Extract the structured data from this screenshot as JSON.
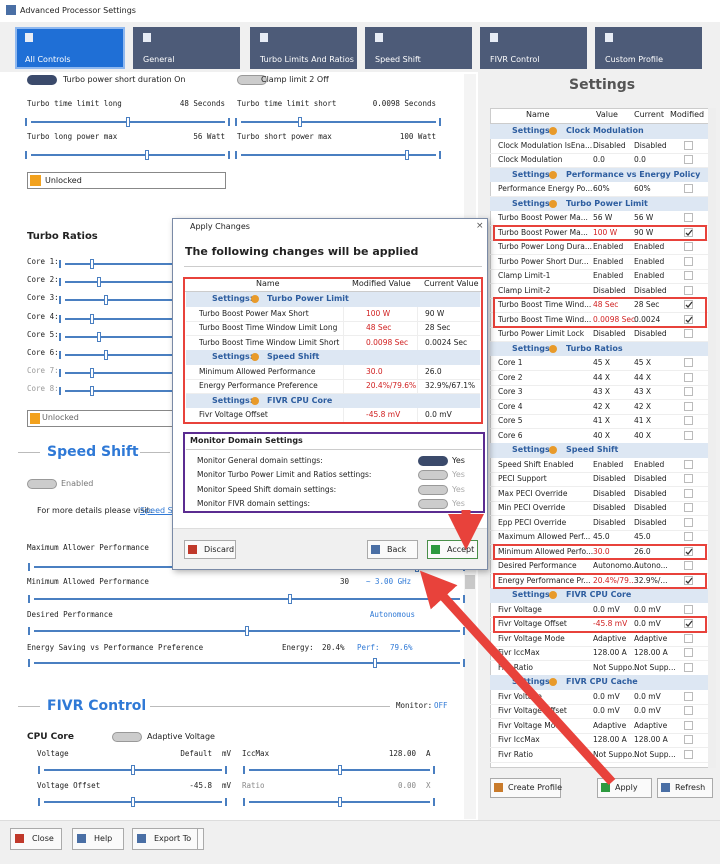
{
  "window": {
    "title": "Advanced Processor Settings"
  },
  "tabs": [
    "All Controls",
    "General",
    "Turbo Limits And Ratios",
    "Speed Shift",
    "FIVR Control",
    "Custom Profile"
  ],
  "left": {
    "toggle_1": "Turbo power short duration On",
    "toggle_2": "Clamp limit 2 Off",
    "turbo_rows": [
      {
        "label": "Turbo time limit long",
        "value": "48 Seconds"
      },
      {
        "label": "Turbo time limit short",
        "value": "0.0098 Seconds"
      },
      {
        "label": "Turbo long power max",
        "value": "56 Watt"
      },
      {
        "label": "Turbo short power max",
        "value": "100 Watt"
      }
    ],
    "lock_1": "Unlocked",
    "turbo_ratios": "Turbo Ratios",
    "cores": [
      "Core 1:",
      "Core 2:",
      "Core 3:",
      "Core 4:",
      "Core 5:",
      "Core 6:",
      "Core 7:",
      "Core 8:"
    ],
    "lock_2": "Unlocked",
    "speed_shift": {
      "title": "Speed Shift",
      "toggle": "Enabled",
      "details": "For more details please visit:",
      "link": "Speed S",
      "max_perf": "Maximum Allower Performance",
      "min_perf": "Minimum Allowed Performance",
      "min_value": "30",
      "min_freq": "~ 3.00 GHz",
      "desired": "Desired Performance",
      "desired_value": "Autonomous",
      "epp": "Energy Saving vs Performance Preference",
      "energy_label": "Energy:",
      "energy_value": "20.4%",
      "perf_label": "Perf:",
      "perf_value": "79.6%"
    },
    "fivr": {
      "title": "FIVR Control",
      "monitor_label": "Monitor:",
      "monitor_value": "OFF",
      "cpu_core": "CPU Core",
      "adaptive": "Adaptive Voltage",
      "voltage": "Voltage",
      "voltage_value": "Default",
      "voltage_unit": "mV",
      "iccmax": "IccMax",
      "iccmax_value": "128.00",
      "iccmax_unit": "A",
      "offset": "Voltage Offset",
      "offset_value": "-45.8",
      "offset_unit": "mV",
      "ratio": "Ratio",
      "ratio_value": "0.00",
      "ratio_unit": "X"
    }
  },
  "settings": {
    "title": "Settings",
    "columns": [
      "Name",
      "Value",
      "Current",
      "Modified"
    ],
    "rows": [
      {
        "prefix": "Settings:",
        "group": "Clock Modulation"
      },
      {
        "name": "Clock Modulation IsEna...",
        "value": "Disabled",
        "current": "Disabled",
        "modified": false
      },
      {
        "name": "Clock Modulation",
        "value": "0.0",
        "current": "0.0",
        "modified": false
      },
      {
        "prefix": "Settings:",
        "group": "Performance vs Energy Policy"
      },
      {
        "name": "Performance Energy Po...",
        "value": "60%",
        "current": "60%",
        "modified": false
      },
      {
        "prefix": "Settings:",
        "group": "Turbo Power Limit"
      },
      {
        "name": "Turbo Boost Power Ma...",
        "value": "56 W",
        "current": "56 W",
        "modified": false
      },
      {
        "name": "Turbo Boost Power Ma...",
        "value": "100 W",
        "current": "90 W",
        "modified": true
      },
      {
        "name": "Turbo Power Long Dura...",
        "value": "Enabled",
        "current": "Enabled",
        "modified": false
      },
      {
        "name": "Turbo Power Short Dur...",
        "value": "Enabled",
        "current": "Enabled",
        "modified": false
      },
      {
        "name": "Clamp Limit-1",
        "value": "Enabled",
        "current": "Enabled",
        "modified": false
      },
      {
        "name": "Clamp Limit-2",
        "value": "Disabled",
        "current": "Disabled",
        "modified": false
      },
      {
        "name": "Turbo Boost Time Wind...",
        "value": "48 Sec",
        "current": "28 Sec",
        "modified": true
      },
      {
        "name": "Turbo Boost Time Wind...",
        "value": "0.0098 Sec",
        "current": "0.0024",
        "modified": true
      },
      {
        "name": "Turbo Power Limit Lock",
        "value": "Disabled",
        "current": "Disabled",
        "modified": false
      },
      {
        "prefix": "Settings:",
        "group": "Turbo Ratios"
      },
      {
        "name": "Core 1",
        "value": "45 X",
        "current": "45 X",
        "modified": false
      },
      {
        "name": "Core 2",
        "value": "44 X",
        "current": "44 X",
        "modified": false
      },
      {
        "name": "Core 3",
        "value": "43 X",
        "current": "43 X",
        "modified": false
      },
      {
        "name": "Core 4",
        "value": "42 X",
        "current": "42 X",
        "modified": false
      },
      {
        "name": "Core 5",
        "value": "41 X",
        "current": "41 X",
        "modified": false
      },
      {
        "name": "Core 6",
        "value": "40 X",
        "current": "40 X",
        "modified": false
      },
      {
        "prefix": "Settings:",
        "group": "Speed Shift"
      },
      {
        "name": "Speed Shift Enabled",
        "value": "Enabled",
        "current": "Enabled",
        "modified": false
      },
      {
        "name": "PECI Support",
        "value": "Disabled",
        "current": "Disabled",
        "modified": false
      },
      {
        "name": "Max PECI Override",
        "value": "Disabled",
        "current": "Disabled",
        "modified": false
      },
      {
        "name": "Min PECI Override",
        "value": "Disabled",
        "current": "Disabled",
        "modified": false
      },
      {
        "name": "Epp PECI Override",
        "value": "Disabled",
        "current": "Disabled",
        "modified": false
      },
      {
        "name": "Maximum Allowed Perf...",
        "value": "45.0",
        "current": "45.0",
        "modified": false
      },
      {
        "name": "Minimum Allowed Perfo...",
        "value": "30.0",
        "current": "26.0",
        "modified": true
      },
      {
        "name": "Desired Performance",
        "value": "Autonomo...",
        "current": "Autono...",
        "modified": false
      },
      {
        "name": "Energy Performance Pr...",
        "value": "20.4%/79...",
        "current": "32.9%/...",
        "modified": true
      },
      {
        "prefix": "Settings:",
        "group": "FIVR CPU Core"
      },
      {
        "name": "Fivr Voltage",
        "value": "0.0 mV",
        "current": "0.0 mV",
        "modified": false
      },
      {
        "name": "Fivr Voltage Offset",
        "value": "-45.8 mV",
        "current": "0.0 mV",
        "modified": true
      },
      {
        "name": "Fivr Voltage Mode",
        "value": "Adaptive",
        "current": "Adaptive",
        "modified": false
      },
      {
        "name": "Fivr IccMax",
        "value": "128.00 A",
        "current": "128.00 A",
        "modified": false
      },
      {
        "name": "Fivr Ratio",
        "value": "Not Suppo...",
        "current": "Not Supp...",
        "modified": false
      },
      {
        "prefix": "Settings:",
        "group": "FIVR CPU Cache"
      },
      {
        "name": "Fivr Voltage",
        "value": "0.0 mV",
        "current": "0.0 mV",
        "modified": false
      },
      {
        "name": "Fivr Voltage Offset",
        "value": "0.0 mV",
        "current": "0.0 mV",
        "modified": false
      },
      {
        "name": "Fivr Voltage Mode",
        "value": "Adaptive",
        "current": "Adaptive",
        "modified": false
      },
      {
        "name": "Fivr IccMax",
        "value": "128.00 A",
        "current": "128.00 A",
        "modified": false
      },
      {
        "name": "Fivr Ratio",
        "value": "Not Suppo...",
        "current": "Not Supp...",
        "modified": false
      }
    ]
  },
  "right_buttons": [
    "Create Profile",
    "Apply",
    "Refresh"
  ],
  "footer": [
    "Close",
    "Help",
    "Export To"
  ],
  "dialog": {
    "title": "Apply Changes",
    "heading": "The following changes will be applied",
    "columns": [
      "Name",
      "Modified Value",
      "Current Value"
    ],
    "rows": [
      {
        "prefix": "Settings:",
        "group": "Turbo Power Limit"
      },
      {
        "name": "Turbo Boost Power Max Short",
        "value": "100 W",
        "current": "90 W"
      },
      {
        "name": "Turbo Boost Time Window Limit Long",
        "value": "48 Sec",
        "current": "28 Sec"
      },
      {
        "name": "Turbo Boost Time Window Limit Short",
        "value": "0.0098 Sec",
        "current": "0.0024 Sec"
      },
      {
        "prefix": "Settings:",
        "group": "Speed Shift"
      },
      {
        "name": "Minimum Allowed Performance",
        "value": "30.0",
        "current": "26.0"
      },
      {
        "name": "Energy Performance Preference",
        "value": "20.4%/79.6%",
        "current": "32.9%/67.1%"
      },
      {
        "prefix": "Settings:",
        "group": "FIVR CPU Core"
      },
      {
        "name": "Fivr Voltage Offset",
        "value": "-45.8 mV",
        "current": "0.0 mV"
      }
    ],
    "monitor_title": "Monitor Domain Settings",
    "monitor": [
      {
        "label": "Monitor General domain settings:",
        "state": "Yes"
      },
      {
        "label": "Monitor Turbo Power Limit and Ratios settings:",
        "state": "Yes"
      },
      {
        "label": "Monitor Speed Shift domain settings:",
        "state": "Yes"
      },
      {
        "label": "Monitor FIVR domain settings:",
        "state": "Yes"
      }
    ],
    "buttons": [
      "Discard",
      "Back",
      "Accept"
    ]
  }
}
